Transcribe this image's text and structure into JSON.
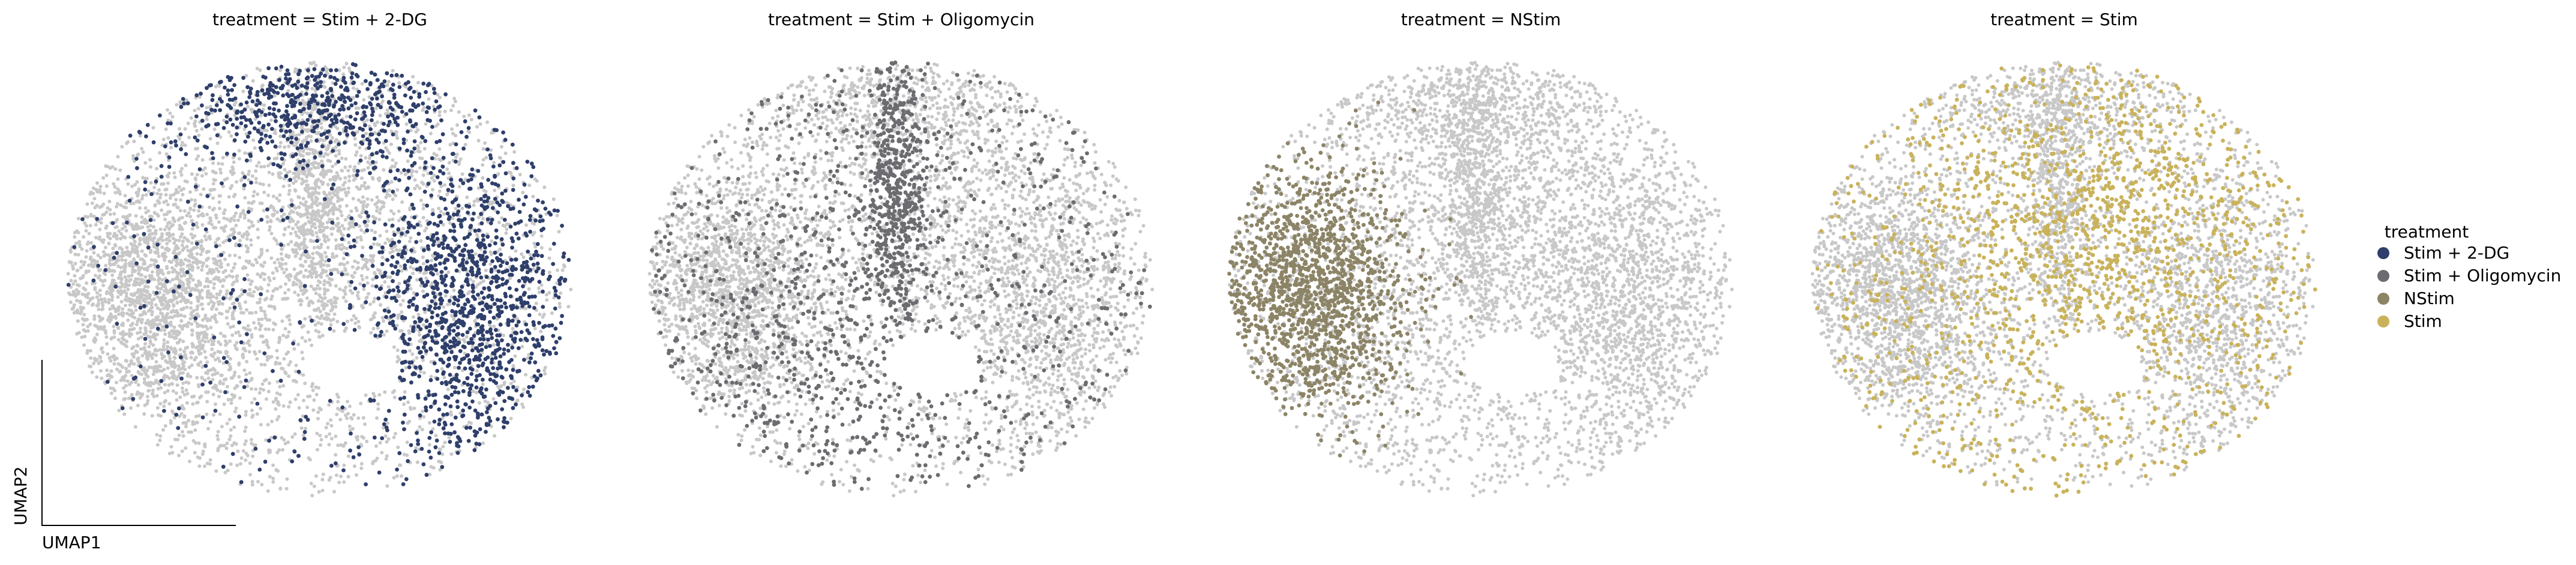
{
  "chart_data": {
    "type": "scatter",
    "x_axis_label": "UMAP1",
    "y_axis_label": "UMAP2",
    "grid": false,
    "legend": {
      "title": "treatment",
      "placement": "right",
      "entries": [
        {
          "label": "Stim + 2-DG",
          "color": "#2f3f6b"
        },
        {
          "label": "Stim + Oligomycin",
          "color": "#6b6b70"
        },
        {
          "label": "NStim",
          "color": "#8c8466"
        },
        {
          "label": "Stim",
          "color": "#c9b25a"
        }
      ]
    },
    "background_color": "#c8c8c8",
    "panels": [
      {
        "title": "treatment = Stim + 2-DG",
        "highlight": "Stim + 2-DG"
      },
      {
        "title": "treatment = Stim + Oligomycin",
        "highlight": "Stim + Oligomycin"
      },
      {
        "title": "treatment = NStim",
        "highlight": "NStim"
      },
      {
        "title": "treatment = Stim",
        "highlight": "Stim"
      }
    ]
  }
}
